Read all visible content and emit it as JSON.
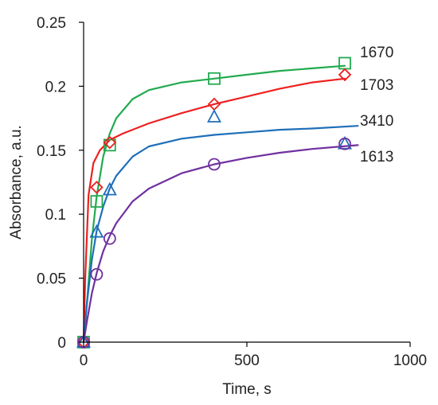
{
  "chart_data": {
    "type": "scatter",
    "xlabel": "Time, s",
    "ylabel": "Absorbance, a.u.",
    "xlim": [
      0,
      1000
    ],
    "ylim": [
      0,
      0.25
    ],
    "x_ticks": [
      0,
      500,
      1000
    ],
    "x_tick_labels": [
      "0",
      "500",
      "1000"
    ],
    "y_ticks": [
      0,
      0.05,
      0.1,
      0.15,
      0.2,
      0.25
    ],
    "y_tick_labels": [
      "0",
      "0.05",
      "0.1",
      "0.15",
      "0.2",
      "0.25"
    ],
    "grid": false,
    "legend": "none",
    "series": [
      {
        "name": "1670",
        "color": "#22aa4f",
        "marker": "square",
        "x": [
          0,
          40,
          80,
          400,
          800
        ],
        "y": [
          0,
          0.11,
          0.154,
          0.206,
          0.218
        ],
        "fit": {
          "x": [
            0,
            10,
            25,
            40,
            60,
            80,
            100,
            150,
            200,
            300,
            400,
            500,
            600,
            700,
            800
          ],
          "y": [
            0,
            0.03,
            0.08,
            0.114,
            0.145,
            0.163,
            0.175,
            0.19,
            0.197,
            0.203,
            0.206,
            0.209,
            0.212,
            0.214,
            0.216
          ]
        }
      },
      {
        "name": "1703",
        "color": "#ee2020",
        "marker": "diamond",
        "x": [
          0,
          40,
          80,
          400,
          800
        ],
        "y": [
          0,
          0.121,
          0.156,
          0.186,
          0.209
        ],
        "fit": {
          "x": [
            0,
            5,
            15,
            30,
            50,
            80,
            120,
            200,
            300,
            400,
            500,
            600,
            700,
            800
          ],
          "y": [
            0,
            0.05,
            0.115,
            0.14,
            0.15,
            0.158,
            0.163,
            0.171,
            0.179,
            0.186,
            0.192,
            0.198,
            0.203,
            0.206
          ]
        }
      },
      {
        "name": "3410",
        "color": "#1f6fb9",
        "marker": "triangle",
        "x": [
          0,
          40,
          80,
          400,
          800
        ],
        "y": [
          0,
          0.086,
          0.119,
          0.176,
          0.155
        ],
        "fit": {
          "x": [
            0,
            10,
            25,
            40,
            60,
            80,
            100,
            150,
            200,
            300,
            400,
            500,
            600,
            700,
            840
          ],
          "y": [
            0,
            0.03,
            0.064,
            0.087,
            0.106,
            0.12,
            0.13,
            0.145,
            0.153,
            0.159,
            0.162,
            0.164,
            0.166,
            0.167,
            0.169
          ]
        }
      },
      {
        "name": "1613",
        "color": "#7030a0",
        "marker": "circle",
        "x": [
          0,
          40,
          80,
          400,
          800
        ],
        "y": [
          0,
          0.053,
          0.081,
          0.139,
          0.155
        ],
        "fit": {
          "x": [
            0,
            10,
            25,
            40,
            60,
            80,
            100,
            150,
            200,
            300,
            400,
            500,
            600,
            700,
            840
          ],
          "y": [
            0,
            0.016,
            0.038,
            0.054,
            0.071,
            0.083,
            0.093,
            0.11,
            0.12,
            0.132,
            0.139,
            0.144,
            0.148,
            0.151,
            0.154
          ]
        }
      }
    ]
  }
}
